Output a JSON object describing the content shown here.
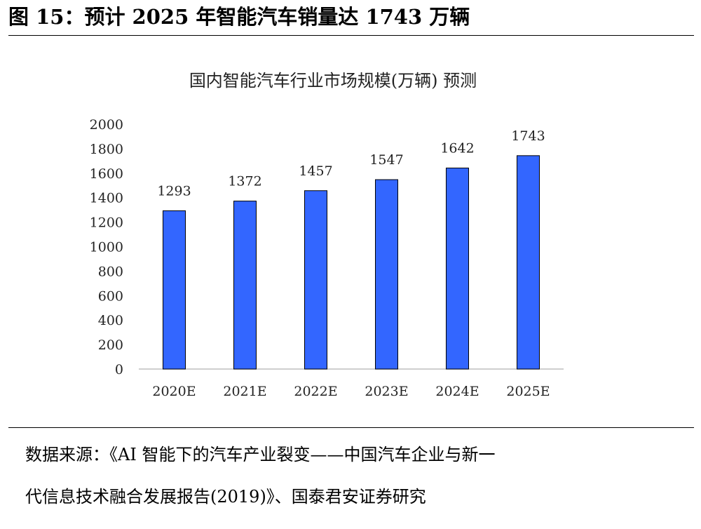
{
  "figure": {
    "title": "图 15：预计 2025 年智能汽车销量达 1743 万辆"
  },
  "source": {
    "line1": "数据来源：《AI 智能下的汽车产业裂变——中国汽车企业与新一",
    "line2": "代信息技术融合发展报告(2019)》、国泰君安证券研究"
  },
  "chart_data": {
    "type": "bar",
    "title": "国内智能汽车行业市场规模(万辆) 预测",
    "xlabel": "",
    "ylabel": "",
    "categories": [
      "2020E",
      "2021E",
      "2022E",
      "2023E",
      "2024E",
      "2025E"
    ],
    "values": [
      1293,
      1372,
      1457,
      1547,
      1642,
      1743
    ],
    "ylim": [
      0,
      2000
    ],
    "yticks": [
      0,
      200,
      400,
      600,
      800,
      1000,
      1200,
      1400,
      1600,
      1800,
      2000
    ],
    "grid": false,
    "legend": "none",
    "bar_color": "#3366FF",
    "bar_edge_color": "#000000"
  }
}
